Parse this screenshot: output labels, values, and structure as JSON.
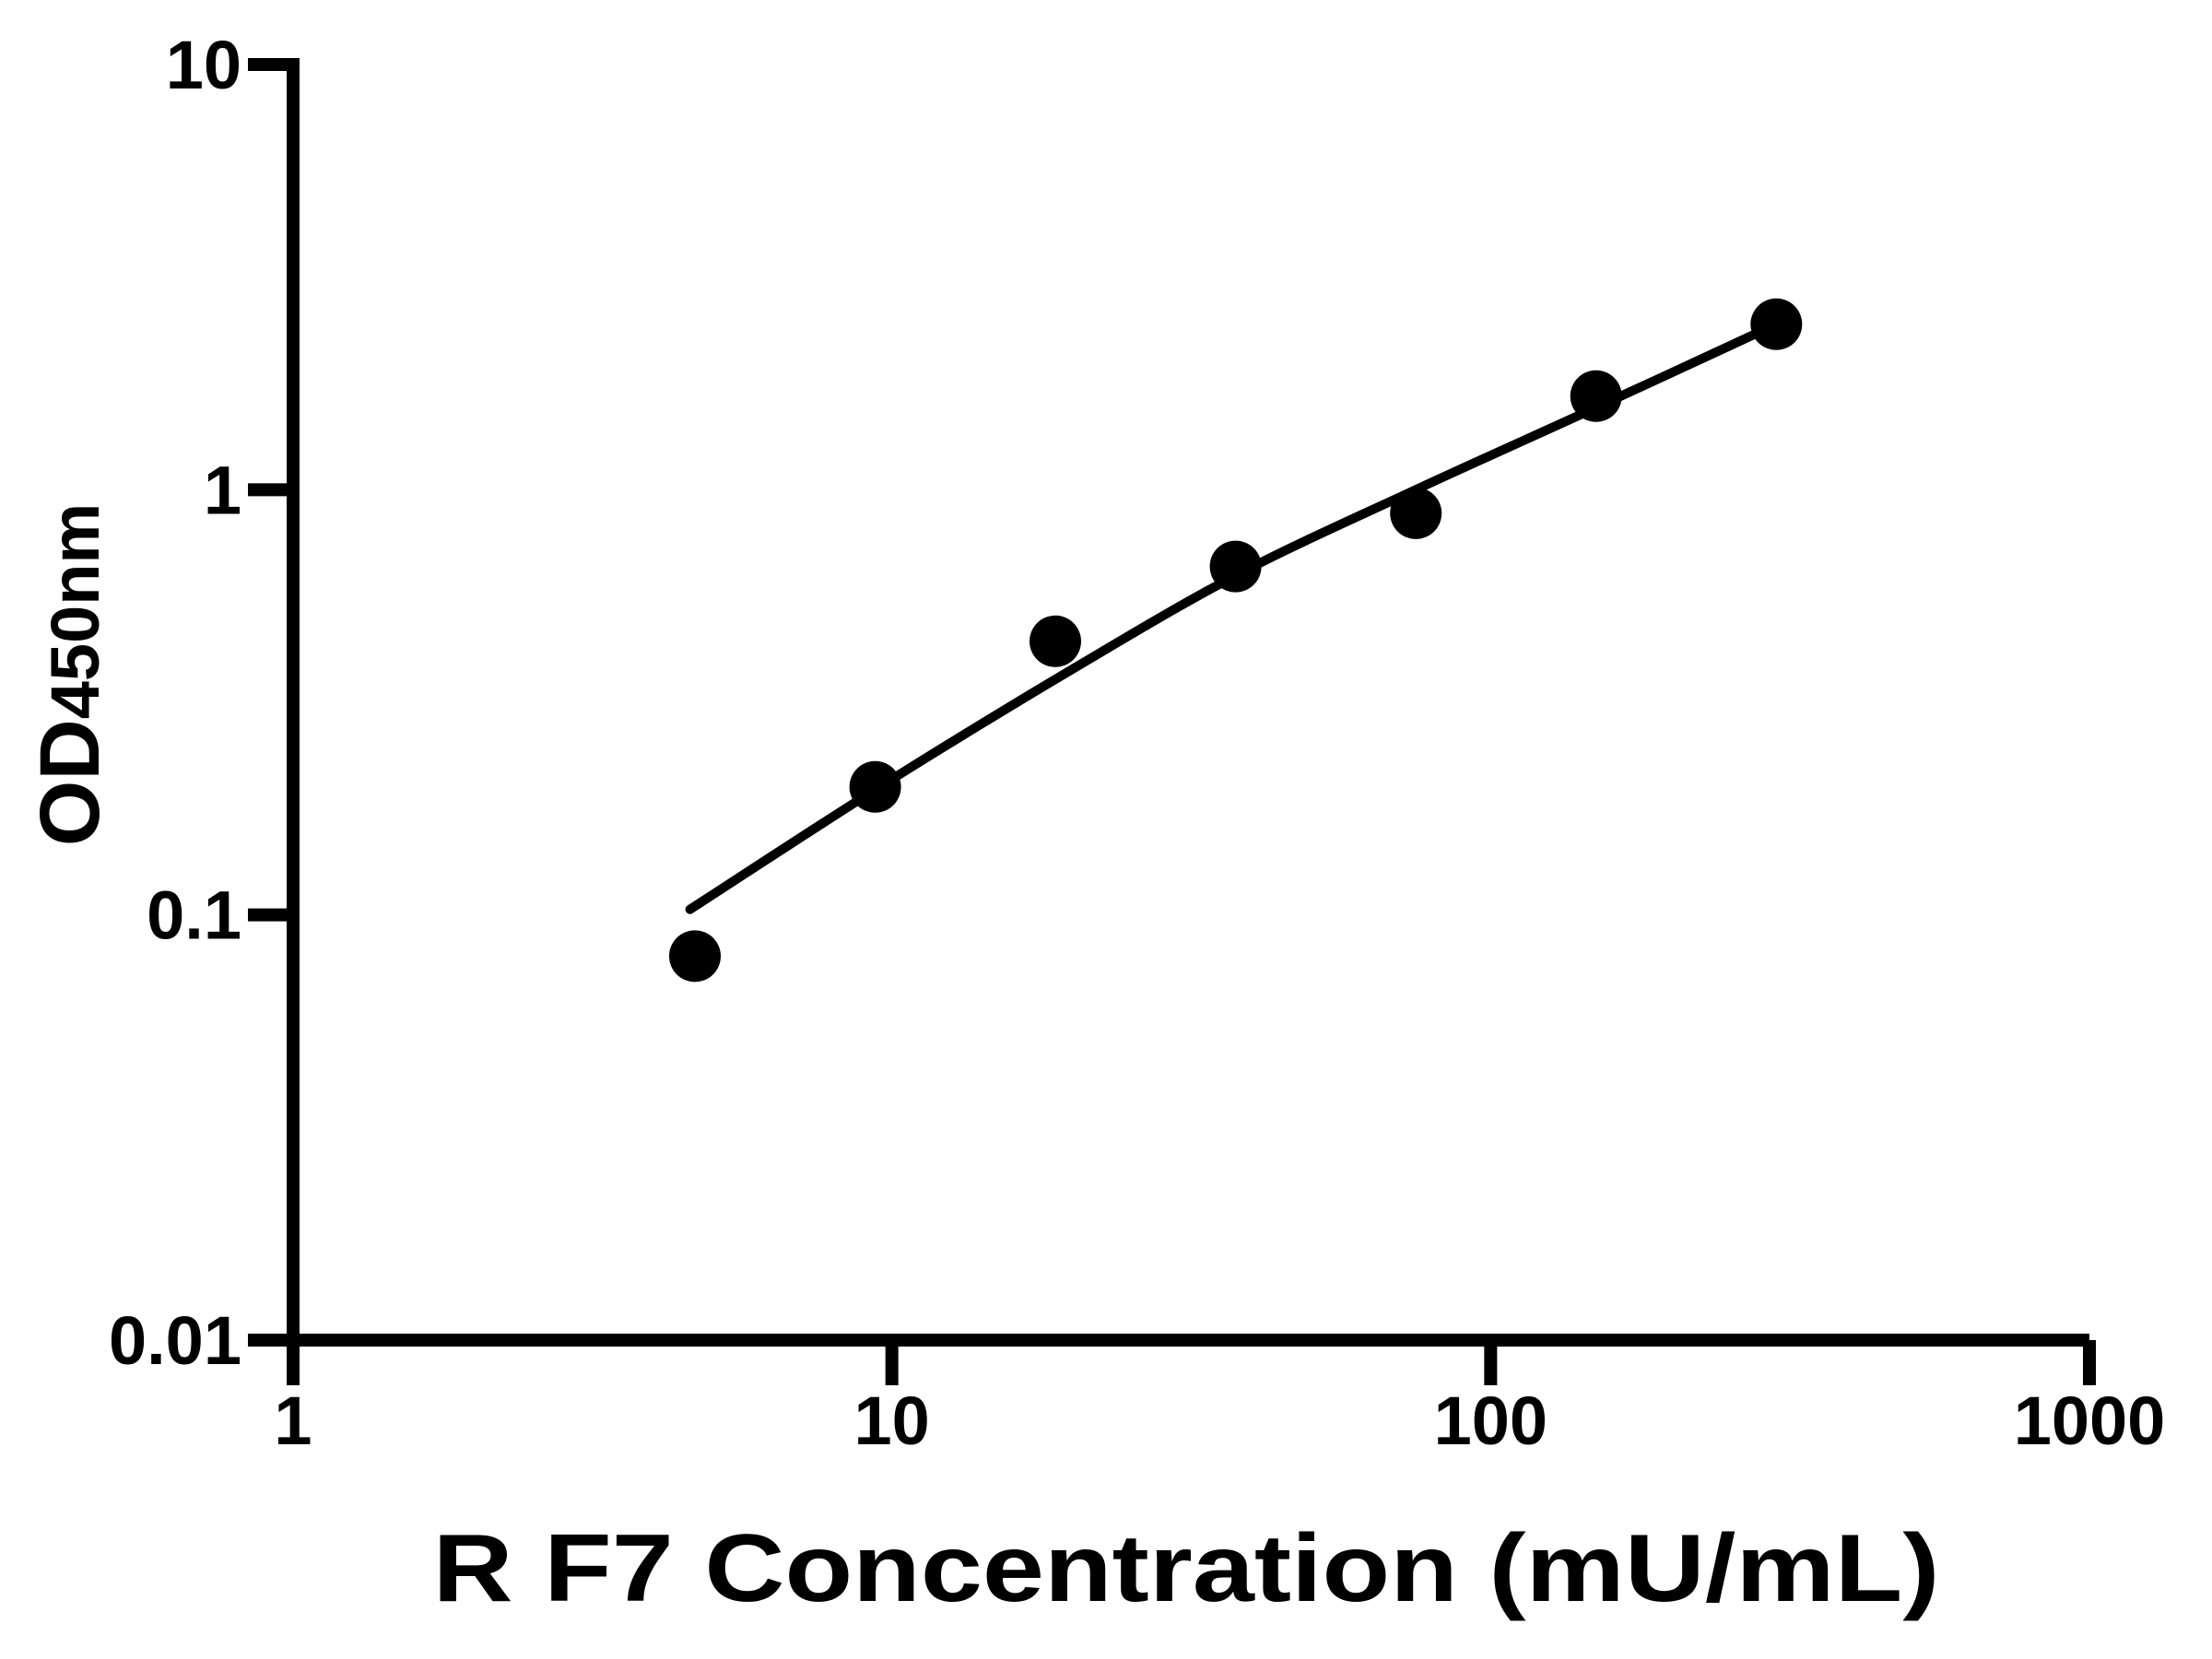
{
  "chart_data": {
    "type": "scatter",
    "title": "",
    "xlabel": "R F7 Concentration (mU/mL)",
    "ylabel_main": "OD",
    "ylabel_sub": "450nm",
    "x_scale": "log",
    "y_scale": "log",
    "xlim": [
      1,
      1000
    ],
    "ylim": [
      0.01,
      10
    ],
    "x_ticks": [
      1,
      10,
      100,
      1000
    ],
    "x_tick_labels": [
      "1",
      "10",
      "100",
      "1000"
    ],
    "y_ticks": [
      10,
      1,
      0.1,
      0.01
    ],
    "y_tick_labels": [
      "10",
      "1",
      "0.1",
      "0.01"
    ],
    "grid": false,
    "legend": null,
    "series": [
      {
        "name": "standard-curve-points",
        "marker": "filled-circle",
        "color": "#000000",
        "points": [
          {
            "x": 4.69,
            "y": 0.08
          },
          {
            "x": 9.38,
            "y": 0.2
          },
          {
            "x": 18.75,
            "y": 0.44
          },
          {
            "x": 37.5,
            "y": 0.66
          },
          {
            "x": 75,
            "y": 0.88
          },
          {
            "x": 150,
            "y": 1.66
          },
          {
            "x": 300,
            "y": 2.45
          }
        ]
      }
    ],
    "fit_curve": {
      "name": "four-parameter-logistic-fit",
      "color": "#000000",
      "points": [
        {
          "x": 4.6,
          "y": 0.103
        },
        {
          "x": 9.38,
          "y": 0.197
        },
        {
          "x": 18.75,
          "y": 0.358
        },
        {
          "x": 37.5,
          "y": 0.628
        },
        {
          "x": 75,
          "y": 1.0
        },
        {
          "x": 150,
          "y": 1.56
        },
        {
          "x": 300,
          "y": 2.45
        }
      ]
    },
    "colors": {
      "foreground": "#000000",
      "background": "#ffffff"
    }
  }
}
